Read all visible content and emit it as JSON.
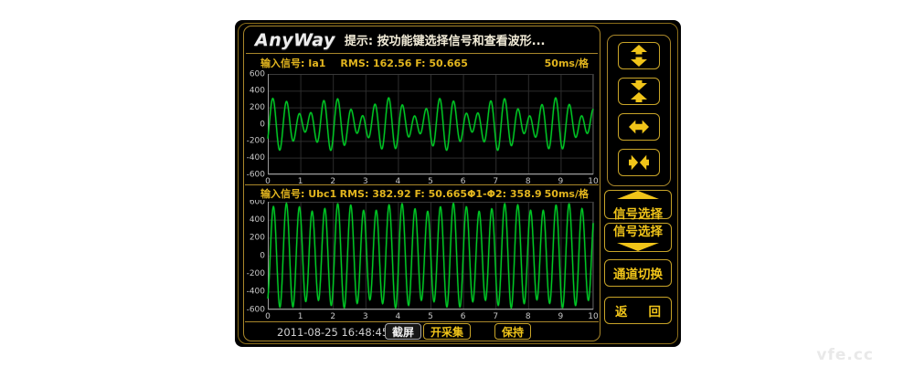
{
  "header": {
    "logo": "AnyWay",
    "hint": "提示: 按功能键选择信号和查看波形..."
  },
  "chart_data": [
    {
      "type": "line",
      "input_label": "输入信号:",
      "signal_name": "Ia1",
      "rms_f": "RMS: 162.56 F: 50.665",
      "scale": "50ms/格",
      "xlim": [
        0,
        10
      ],
      "ylim": [
        -600,
        600
      ],
      "x_ticks": [
        0,
        1,
        2,
        3,
        4,
        5,
        6,
        7,
        8,
        9,
        10
      ],
      "y_ticks": [
        600,
        400,
        200,
        0,
        -200,
        -400,
        -600
      ],
      "x_unit": "50ms per division",
      "grid": true,
      "color": "#00c824",
      "components": [
        {
          "amp": 205,
          "cycles_per_div": 2.533,
          "phase": -1.0
        },
        {
          "amp": 110,
          "cycles_per_div": 1.95,
          "phase": 0.0
        }
      ]
    },
    {
      "type": "line",
      "input_label": "输入信号:",
      "signal_name": "Ubc1",
      "rms_f": "RMS: 382.92 F: 50.665",
      "phase_label": "Φ1-Φ2: 358.9",
      "scale": "50ms/格",
      "xlim": [
        0,
        10
      ],
      "ylim": [
        -600,
        600
      ],
      "x_ticks": [
        0,
        1,
        2,
        3,
        4,
        5,
        6,
        7,
        8,
        9,
        10
      ],
      "y_ticks": [
        600,
        400,
        200,
        0,
        -200,
        -400,
        -600
      ],
      "x_unit": "50ms per division",
      "grid": true,
      "color": "#00c824",
      "components": [
        {
          "amp": 538,
          "cycles_per_div": 2.533,
          "phase": -1.25
        },
        {
          "amp": 45,
          "cycles_per_div": 1.95,
          "phase": 0.8
        }
      ]
    }
  ],
  "right_panel": {
    "zoom_buttons": [
      {
        "icon": "expand-vertical-icon"
      },
      {
        "icon": "compress-vertical-icon"
      },
      {
        "icon": "expand-horizontal-icon"
      },
      {
        "icon": "compress-horizontal-icon"
      }
    ],
    "signal_select_up": {
      "label": "信号选择",
      "icon": "triangle-up-icon"
    },
    "signal_select_down": {
      "label": "信号选择",
      "icon": "triangle-down-icon"
    },
    "channel_switch": {
      "label": "通道切换"
    },
    "back": {
      "label_left": "返",
      "label_right": "回"
    }
  },
  "footer": {
    "datetime": "2011-08-25 16:48:45",
    "screenshot_label": "截屏",
    "acquire_label": "开采集",
    "hold_label": "保持"
  },
  "watermark": "vfe.cc",
  "colors": {
    "accent_yellow": "#e2b51e",
    "panel_border": "#a8862a",
    "button_yellow": "#f0c419",
    "wave_green": "#00c824",
    "grid": "#2d2d2d"
  }
}
